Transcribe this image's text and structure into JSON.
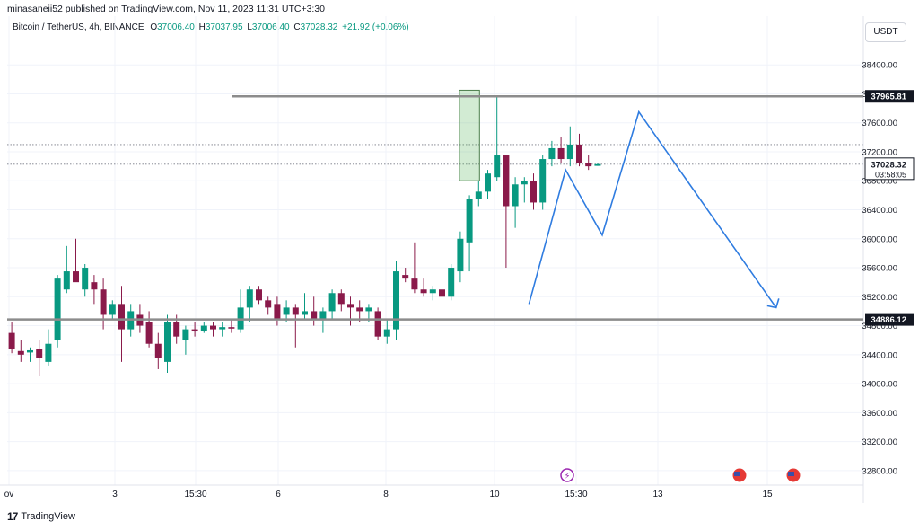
{
  "header": {
    "publisher_line": "minasaneii52 published on TradingView.com, Nov 11, 2023 11:31 UTC+3:30"
  },
  "legend": {
    "symbol": "Bitcoin / TetherUS, 4h, BINANCE",
    "o_label": "O",
    "o_value": "37006.40",
    "h_label": "H",
    "h_value": "37037.95",
    "l_label": "L",
    "l_value": "37006.40",
    "c_label": "C",
    "c_value": "37028.32",
    "change": "+21.92 (+0.06%)"
  },
  "currency_button": "USDT",
  "footer": {
    "brand": "TradingView",
    "logo": "17"
  },
  "colors": {
    "up": "#089981",
    "down": "#8a1a4a",
    "pattern": "#2f7ce0",
    "level_line": "#8c8c8c",
    "label_bg": "#131722",
    "grid": "#f0f3fa",
    "event_purple": "#9c27b0",
    "flag_red": "#e53935"
  },
  "chart_data": {
    "type": "candlestick",
    "symbol": "BTC/USDT",
    "timeframe": "4h",
    "ylim": [
      32600,
      38700
    ],
    "y_ticks": [
      32800,
      33200,
      33600,
      34000,
      34400,
      34800,
      35200,
      35600,
      36000,
      36400,
      36800,
      37200,
      37600,
      38000,
      38400
    ],
    "y_tick_labels": [
      "32800.00",
      "33200.00",
      "33600.00",
      "34000.00",
      "34400.00",
      "34800.00",
      "35200.00",
      "35600.00",
      "36000.00",
      "36400.00",
      "36800.00",
      "37200.00",
      "37600.00",
      "38000.00",
      "38400.00"
    ],
    "x_tick_labels": [
      "ov",
      "3",
      "15:30",
      "6",
      "8",
      "10",
      "15:30",
      "13",
      "15"
    ],
    "candles": [
      {
        "o": 34700,
        "h": 34850,
        "l": 34420,
        "c": 34480
      },
      {
        "o": 34450,
        "h": 34600,
        "l": 34300,
        "c": 34400
      },
      {
        "o": 34430,
        "h": 34500,
        "l": 34300,
        "c": 34460
      },
      {
        "o": 34480,
        "h": 34600,
        "l": 34100,
        "c": 34350
      },
      {
        "o": 34300,
        "h": 34750,
        "l": 34250,
        "c": 34550
      },
      {
        "o": 34600,
        "h": 35500,
        "l": 34500,
        "c": 35450
      },
      {
        "o": 35300,
        "h": 35900,
        "l": 35250,
        "c": 35550
      },
      {
        "o": 35550,
        "h": 36000,
        "l": 35450,
        "c": 35400
      },
      {
        "o": 35300,
        "h": 35650,
        "l": 35200,
        "c": 35600
      },
      {
        "o": 35400,
        "h": 35500,
        "l": 35100,
        "c": 35300
      },
      {
        "o": 35300,
        "h": 35450,
        "l": 34750,
        "c": 34950
      },
      {
        "o": 34950,
        "h": 35150,
        "l": 34900,
        "c": 35100
      },
      {
        "o": 35100,
        "h": 35350,
        "l": 34300,
        "c": 34750
      },
      {
        "o": 34750,
        "h": 35100,
        "l": 34650,
        "c": 35000
      },
      {
        "o": 34950,
        "h": 35100,
        "l": 34700,
        "c": 34800
      },
      {
        "o": 34850,
        "h": 35000,
        "l": 34500,
        "c": 34550
      },
      {
        "o": 34550,
        "h": 34700,
        "l": 34200,
        "c": 34350
      },
      {
        "o": 34300,
        "h": 34950,
        "l": 34150,
        "c": 34850
      },
      {
        "o": 34850,
        "h": 34950,
        "l": 34550,
        "c": 34650
      },
      {
        "o": 34600,
        "h": 34800,
        "l": 34400,
        "c": 34750
      },
      {
        "o": 34750,
        "h": 34850,
        "l": 34650,
        "c": 34720
      },
      {
        "o": 34720,
        "h": 34850,
        "l": 34700,
        "c": 34800
      },
      {
        "o": 34800,
        "h": 34850,
        "l": 34650,
        "c": 34750
      },
      {
        "o": 34750,
        "h": 34850,
        "l": 34650,
        "c": 34780
      },
      {
        "o": 34780,
        "h": 34900,
        "l": 34700,
        "c": 34760
      },
      {
        "o": 34750,
        "h": 35300,
        "l": 34700,
        "c": 35050
      },
      {
        "o": 35050,
        "h": 35350,
        "l": 34850,
        "c": 35300
      },
      {
        "o": 35300,
        "h": 35350,
        "l": 35100,
        "c": 35150
      },
      {
        "o": 35150,
        "h": 35200,
        "l": 34950,
        "c": 35050
      },
      {
        "o": 35100,
        "h": 35200,
        "l": 34800,
        "c": 34900
      },
      {
        "o": 34950,
        "h": 35150,
        "l": 34850,
        "c": 35050
      },
      {
        "o": 35050,
        "h": 35100,
        "l": 34500,
        "c": 34950
      },
      {
        "o": 34950,
        "h": 35250,
        "l": 34900,
        "c": 35000
      },
      {
        "o": 35000,
        "h": 35200,
        "l": 34800,
        "c": 34900
      },
      {
        "o": 34900,
        "h": 35050,
        "l": 34700,
        "c": 35000
      },
      {
        "o": 35000,
        "h": 35300,
        "l": 34900,
        "c": 35250
      },
      {
        "o": 35250,
        "h": 35300,
        "l": 35000,
        "c": 35100
      },
      {
        "o": 35100,
        "h": 35200,
        "l": 34800,
        "c": 35050
      },
      {
        "o": 35050,
        "h": 35150,
        "l": 34850,
        "c": 35000
      },
      {
        "o": 35000,
        "h": 35100,
        "l": 34850,
        "c": 35050
      },
      {
        "o": 35000,
        "h": 35050,
        "l": 34600,
        "c": 34650
      },
      {
        "o": 34650,
        "h": 34900,
        "l": 34550,
        "c": 34750
      },
      {
        "o": 34750,
        "h": 35700,
        "l": 34600,
        "c": 35550
      },
      {
        "o": 35500,
        "h": 35600,
        "l": 35400,
        "c": 35450
      },
      {
        "o": 35450,
        "h": 35950,
        "l": 35250,
        "c": 35300
      },
      {
        "o": 35300,
        "h": 35450,
        "l": 35200,
        "c": 35250
      },
      {
        "o": 35250,
        "h": 35350,
        "l": 35150,
        "c": 35300
      },
      {
        "o": 35300,
        "h": 35400,
        "l": 35150,
        "c": 35200
      },
      {
        "o": 35200,
        "h": 35650,
        "l": 35150,
        "c": 35600
      },
      {
        "o": 35550,
        "h": 36100,
        "l": 35400,
        "c": 36000
      },
      {
        "o": 35950,
        "h": 36600,
        "l": 35550,
        "c": 36550
      },
      {
        "o": 36550,
        "h": 36800,
        "l": 36450,
        "c": 36650
      },
      {
        "o": 36650,
        "h": 36950,
        "l": 36550,
        "c": 36900
      },
      {
        "o": 36850,
        "h": 37950,
        "l": 36800,
        "c": 37150
      },
      {
        "o": 37150,
        "h": 37150,
        "l": 35600,
        "c": 36450
      },
      {
        "o": 36450,
        "h": 36850,
        "l": 36150,
        "c": 36750
      },
      {
        "o": 36750,
        "h": 36850,
        "l": 36500,
        "c": 36800
      },
      {
        "o": 36800,
        "h": 36900,
        "l": 36400,
        "c": 36500
      },
      {
        "o": 36500,
        "h": 37150,
        "l": 36400,
        "c": 37100
      },
      {
        "o": 37100,
        "h": 37350,
        "l": 37000,
        "c": 37250
      },
      {
        "o": 37250,
        "h": 37400,
        "l": 37050,
        "c": 37100
      },
      {
        "o": 37100,
        "h": 37550,
        "l": 37000,
        "c": 37300
      },
      {
        "o": 37300,
        "h": 37450,
        "l": 37000,
        "c": 37050
      },
      {
        "o": 37050,
        "h": 37150,
        "l": 36950,
        "c": 37000
      },
      {
        "o": 37006.4,
        "h": 37037.95,
        "l": 37006.4,
        "c": 37028.32
      }
    ],
    "levels": [
      {
        "price": 37965.81,
        "label": "37965.81"
      },
      {
        "price": 34886.12,
        "label": "34886.12"
      }
    ],
    "dotted_levels": [
      37300,
      37028.32
    ],
    "current_price": {
      "label": "37028.32",
      "countdown": "03:58:05"
    },
    "annotations": {
      "highlight_box_price": [
        36800,
        38050
      ],
      "pattern_path": [
        {
          "bar": 57,
          "price": 35100
        },
        {
          "bar": 61,
          "price": 36950
        },
        {
          "bar": 65,
          "price": 36050
        },
        {
          "bar": 69,
          "price": 37750
        },
        {
          "bar": 84,
          "price": 35050
        }
      ]
    }
  }
}
